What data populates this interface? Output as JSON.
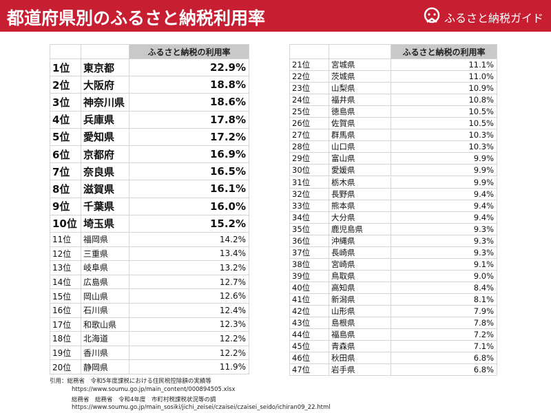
{
  "header": {
    "title": "都道府県別のふるさと納税利用率",
    "brand": "ふるさと納税ガイド"
  },
  "left_table": {
    "header": "ふるさと納税の利用率",
    "rows": [
      [
        "1位",
        "東京都",
        "22.9%"
      ],
      [
        "2位",
        "大阪府",
        "18.8%"
      ],
      [
        "3位",
        "神奈川県",
        "18.6%"
      ],
      [
        "4位",
        "兵庫県",
        "17.8%"
      ],
      [
        "5位",
        "愛知県",
        "17.2%"
      ],
      [
        "6位",
        "京都府",
        "16.9%"
      ],
      [
        "7位",
        "奈良県",
        "16.5%"
      ],
      [
        "8位",
        "滋賀県",
        "16.1%"
      ],
      [
        "9位",
        "千葉県",
        "16.0%"
      ],
      [
        "10位",
        "埼玉県",
        "15.2%"
      ],
      [
        "11位",
        "福岡県",
        "14.2%"
      ],
      [
        "12位",
        "三重県",
        "13.4%"
      ],
      [
        "13位",
        "岐阜県",
        "13.2%"
      ],
      [
        "14位",
        "広島県",
        "12.7%"
      ],
      [
        "15位",
        "岡山県",
        "12.6%"
      ],
      [
        "16位",
        "石川県",
        "12.4%"
      ],
      [
        "17位",
        "和歌山県",
        "12.3%"
      ],
      [
        "18位",
        "北海道",
        "12.2%"
      ],
      [
        "19位",
        "香川県",
        "12.2%"
      ],
      [
        "20位",
        "静岡県",
        "11.9%"
      ]
    ]
  },
  "right_table": {
    "header": "ふるさと納税の利用率",
    "rows": [
      [
        "21位",
        "宮城県",
        "11.1%"
      ],
      [
        "22位",
        "茨城県",
        "11.0%"
      ],
      [
        "23位",
        "山梨県",
        "10.9%"
      ],
      [
        "24位",
        "福井県",
        "10.8%"
      ],
      [
        "25位",
        "徳島県",
        "10.5%"
      ],
      [
        "26位",
        "佐賀県",
        "10.5%"
      ],
      [
        "27位",
        "群馬県",
        "10.3%"
      ],
      [
        "28位",
        "山口県",
        "10.3%"
      ],
      [
        "29位",
        "富山県",
        "9.9%"
      ],
      [
        "30位",
        "愛媛県",
        "9.9%"
      ],
      [
        "31位",
        "栃木県",
        "9.9%"
      ],
      [
        "32位",
        "長野県",
        "9.4%"
      ],
      [
        "33位",
        "熊本県",
        "9.4%"
      ],
      [
        "34位",
        "大分県",
        "9.4%"
      ],
      [
        "35位",
        "鹿児島県",
        "9.3%"
      ],
      [
        "36位",
        "沖縄県",
        "9.3%"
      ],
      [
        "37位",
        "長崎県",
        "9.3%"
      ],
      [
        "38位",
        "宮崎県",
        "9.1%"
      ],
      [
        "39位",
        "鳥取県",
        "9.0%"
      ],
      [
        "40位",
        "高知県",
        "8.4%"
      ],
      [
        "41位",
        "新潟県",
        "8.1%"
      ],
      [
        "42位",
        "山形県",
        "7.9%"
      ],
      [
        "43位",
        "島根県",
        "7.8%"
      ],
      [
        "44位",
        "福島県",
        "7.2%"
      ],
      [
        "45位",
        "青森県",
        "7.1%"
      ],
      [
        "46位",
        "秋田県",
        "6.8%"
      ],
      [
        "47位",
        "岩手県",
        "6.8%"
      ]
    ]
  },
  "sources": [
    "引用：総務省　令和5年度課税における住民税控除額の実績等",
    "https://www.soumu.go.jp/main_content/000894505.xlsx",
    "総務省　総務省　令和4年度　市町村税課税状況等の調",
    "https://www.soumu.go.jp/main_sosiki/jichi_zeisei/czaisei/czaisei_seido/ichiran09_22.html"
  ]
}
